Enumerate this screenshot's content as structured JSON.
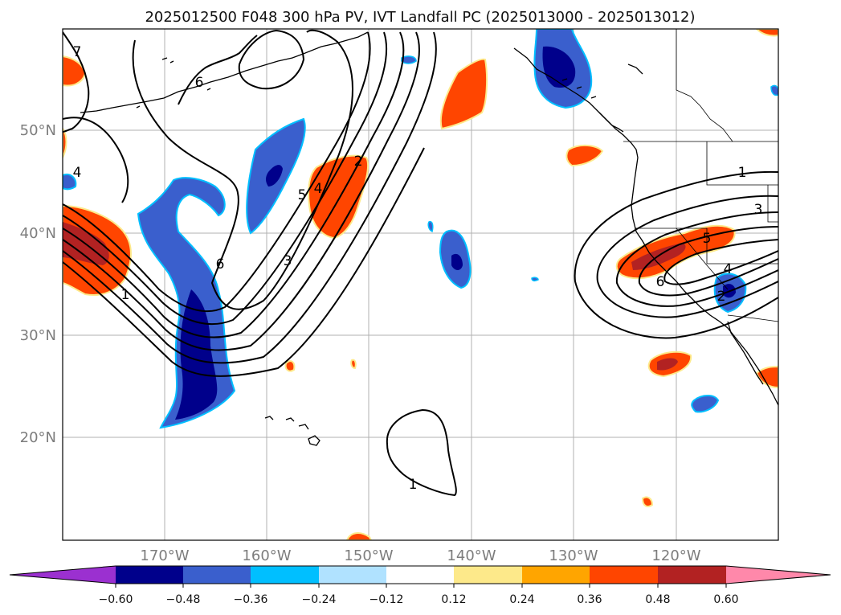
{
  "title": "2025012500 F048 300 hPa PV, IVT Landfall PC (2025013000 - 2025013012)",
  "lat_labels": [
    "50°N",
    "40°N",
    "30°N",
    "20°N"
  ],
  "lon_labels": [
    "170°W",
    "160°W",
    "150°W",
    "140°W",
    "130°W",
    "120°W"
  ],
  "colorbar": {
    "ticks": [
      "−0.60",
      "−0.48",
      "−0.36",
      "−0.24",
      "−0.12",
      "0.12",
      "0.24",
      "0.36",
      "0.48",
      "0.60"
    ],
    "colors": [
      "#9b30d0",
      "#00008b",
      "#3a5fcd",
      "#00bfff",
      "#b0e2ff",
      "#ffffff",
      "#fde98a",
      "#ffa500",
      "#ff4500",
      "#b22222",
      "#ff88aa"
    ]
  },
  "contour_labels": [
    "7",
    "6",
    "4",
    "5",
    "4",
    "2",
    "6",
    "3",
    "1",
    "1",
    "3",
    "5",
    "4",
    "6",
    "2",
    "1"
  ]
}
